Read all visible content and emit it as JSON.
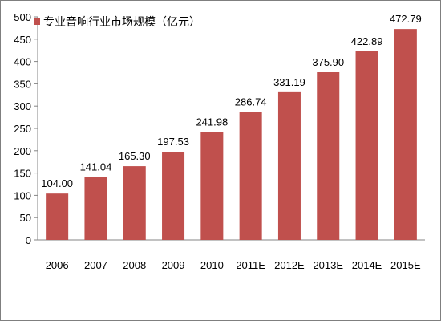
{
  "chart_data": {
    "type": "bar",
    "categories": [
      "2006",
      "2007",
      "2008",
      "2009",
      "2010",
      "2011E",
      "2012E",
      "2013E",
      "2014E",
      "2015E"
    ],
    "series": [
      {
        "name": "专业音响行业市场规模（亿元）",
        "values": [
          104.0,
          141.04,
          165.3,
          197.53,
          241.98,
          286.74,
          331.19,
          375.9,
          422.89,
          472.79
        ],
        "labels": [
          "104.00",
          "141.04",
          "165.30",
          "197.53",
          "241.98",
          "286.74",
          "331.19",
          "375.90",
          "422.89",
          "472.79"
        ],
        "color": "#c0504d"
      }
    ],
    "yticks": [
      "0",
      "50",
      "100",
      "150",
      "200",
      "250",
      "300",
      "350",
      "400",
      "450",
      "500"
    ],
    "ylim": [
      0,
      500
    ],
    "grid": false,
    "legend": "top-left",
    "title": "",
    "xlabel": "",
    "ylabel": ""
  }
}
